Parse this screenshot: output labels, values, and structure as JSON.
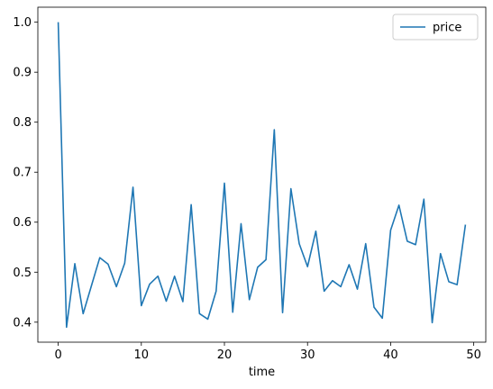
{
  "chart_data": {
    "type": "line",
    "title": "",
    "xlabel": "time",
    "ylabel": "",
    "xlim": [
      -2.45,
      51.45
    ],
    "ylim": [
      0.36,
      1.03
    ],
    "xticks": [
      0,
      10,
      20,
      30,
      40,
      50
    ],
    "yticks": [
      0.4,
      0.5,
      0.6,
      0.7,
      0.8,
      0.9,
      1.0
    ],
    "xtick_labels": [
      "0",
      "10",
      "20",
      "30",
      "40",
      "50"
    ],
    "ytick_labels": [
      "0.4",
      "0.5",
      "0.6",
      "0.7",
      "0.8",
      "0.9",
      "1.0"
    ],
    "grid": false,
    "legend_position": "top-right",
    "series": [
      {
        "name": "price",
        "color": "#1f77b4",
        "x": [
          0,
          1,
          2,
          3,
          4,
          5,
          6,
          7,
          8,
          9,
          10,
          11,
          12,
          13,
          14,
          15,
          16,
          17,
          18,
          19,
          20,
          21,
          22,
          23,
          24,
          25,
          26,
          27,
          28,
          29,
          30,
          31,
          32,
          33,
          34,
          35,
          36,
          37,
          38,
          39,
          40,
          41,
          42,
          43,
          44,
          45,
          46,
          47,
          48,
          49
        ],
        "y": [
          1.0,
          0.39,
          0.517,
          0.417,
          0.473,
          0.529,
          0.516,
          0.471,
          0.518,
          0.67,
          0.433,
          0.476,
          0.492,
          0.442,
          0.492,
          0.441,
          0.635,
          0.417,
          0.406,
          0.462,
          0.678,
          0.42,
          0.597,
          0.445,
          0.51,
          0.525,
          0.785,
          0.419,
          0.667,
          0.557,
          0.511,
          0.582,
          0.462,
          0.483,
          0.471,
          0.515,
          0.466,
          0.557,
          0.43,
          0.408,
          0.584,
          0.634,
          0.562,
          0.555,
          0.646,
          0.399,
          0.537,
          0.481,
          0.475,
          0.595
        ]
      }
    ]
  }
}
